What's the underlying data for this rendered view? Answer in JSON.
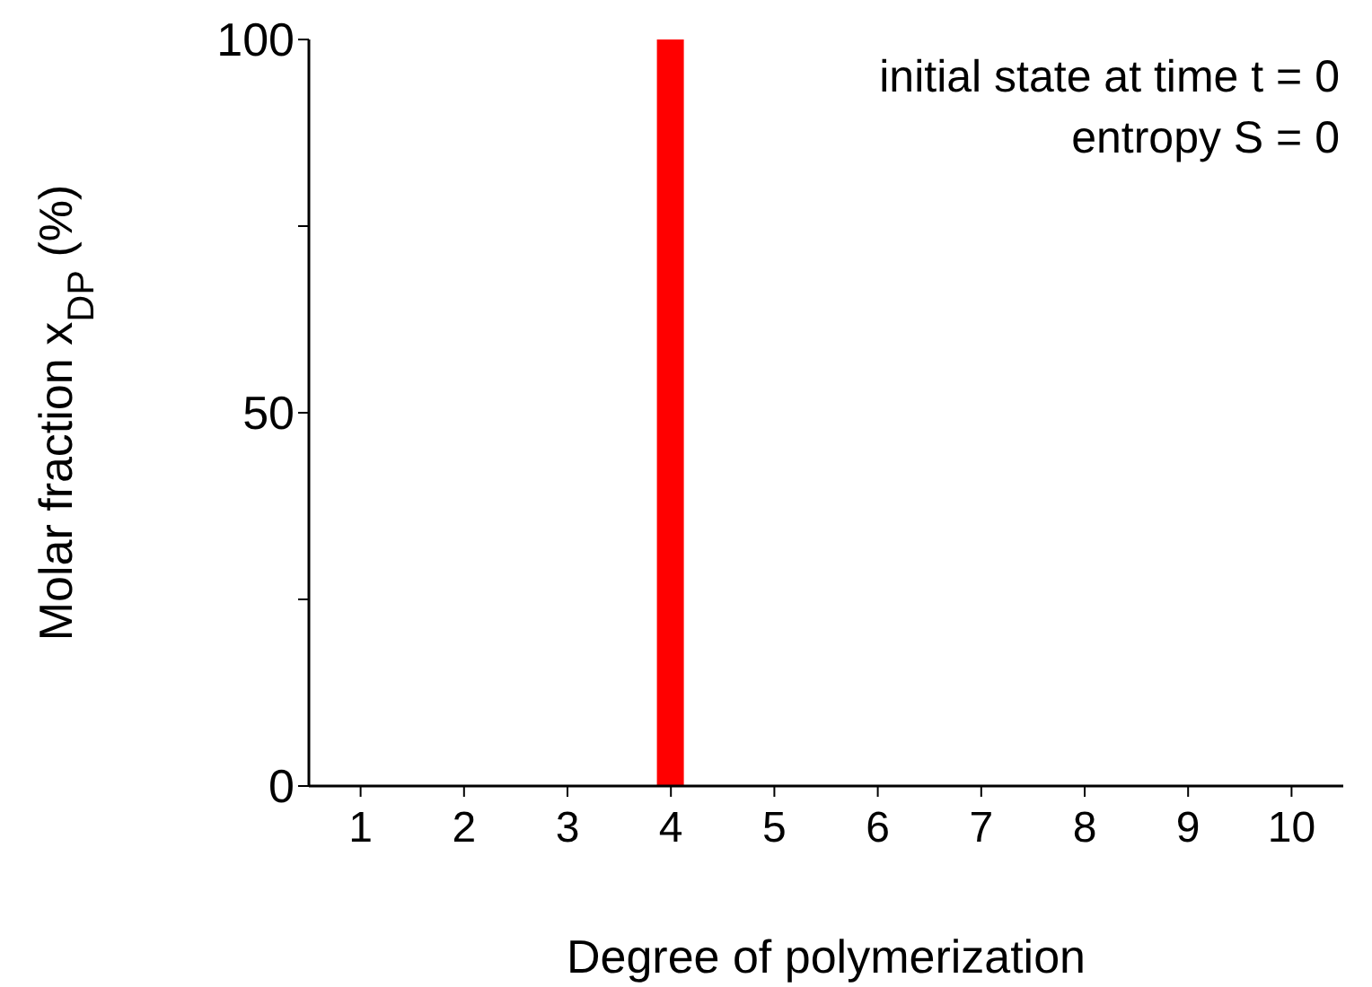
{
  "chart_data": {
    "type": "bar",
    "xlabel": "Degree of polymerization",
    "ylabel": "Molar fraction x$_{DP}$ (%)",
    "categories": [
      "1",
      "2",
      "3",
      "4",
      "5",
      "6",
      "7",
      "8",
      "9",
      "10"
    ],
    "values": [
      0,
      0,
      0,
      100,
      0,
      0,
      0,
      0,
      0,
      0
    ],
    "color": "#ff0000",
    "ylim": [
      0,
      100
    ],
    "yticks": [
      0,
      {
        "value": 25,
        "label": null
      },
      50,
      {
        "value": 75,
        "label": null
      },
      100
    ],
    "annotations": [
      "initial state at time t = 0",
      "entropy S = 0"
    ],
    "grid": false,
    "legend": false
  }
}
